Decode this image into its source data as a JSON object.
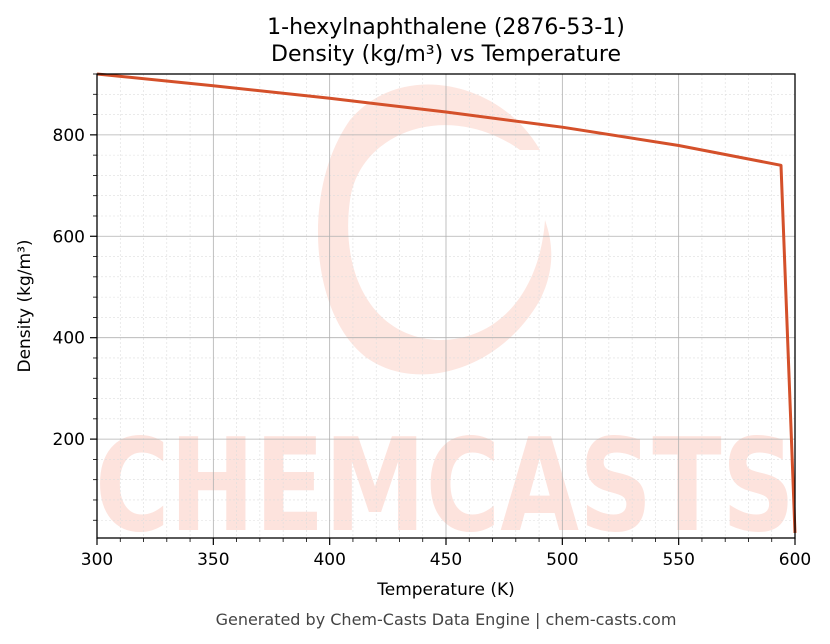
{
  "chart_data": {
    "type": "line",
    "title_line1": "1-hexylnaphthalene (2876-53-1)",
    "title_line2": "Density (kg/m³) vs Temperature",
    "xlabel": "Temperature (K)",
    "ylabel": "Density (kg/m³)",
    "xlim": [
      300,
      600
    ],
    "ylim": [
      5,
      920
    ],
    "xticks": [
      300,
      350,
      400,
      450,
      500,
      550,
      600
    ],
    "yticks": [
      200,
      400,
      600,
      800
    ],
    "grid": true,
    "series": [
      {
        "color": "#d4502a",
        "x": [
          300,
          350,
          400,
          450,
          500,
          550,
          594,
          600
        ],
        "y": [
          920,
          897,
          872,
          845,
          815,
          779,
          740,
          15
        ]
      }
    ]
  },
  "watermark": "CHEMCASTS",
  "footer": "Generated by Chem-Casts Data Engine | chem-casts.com"
}
